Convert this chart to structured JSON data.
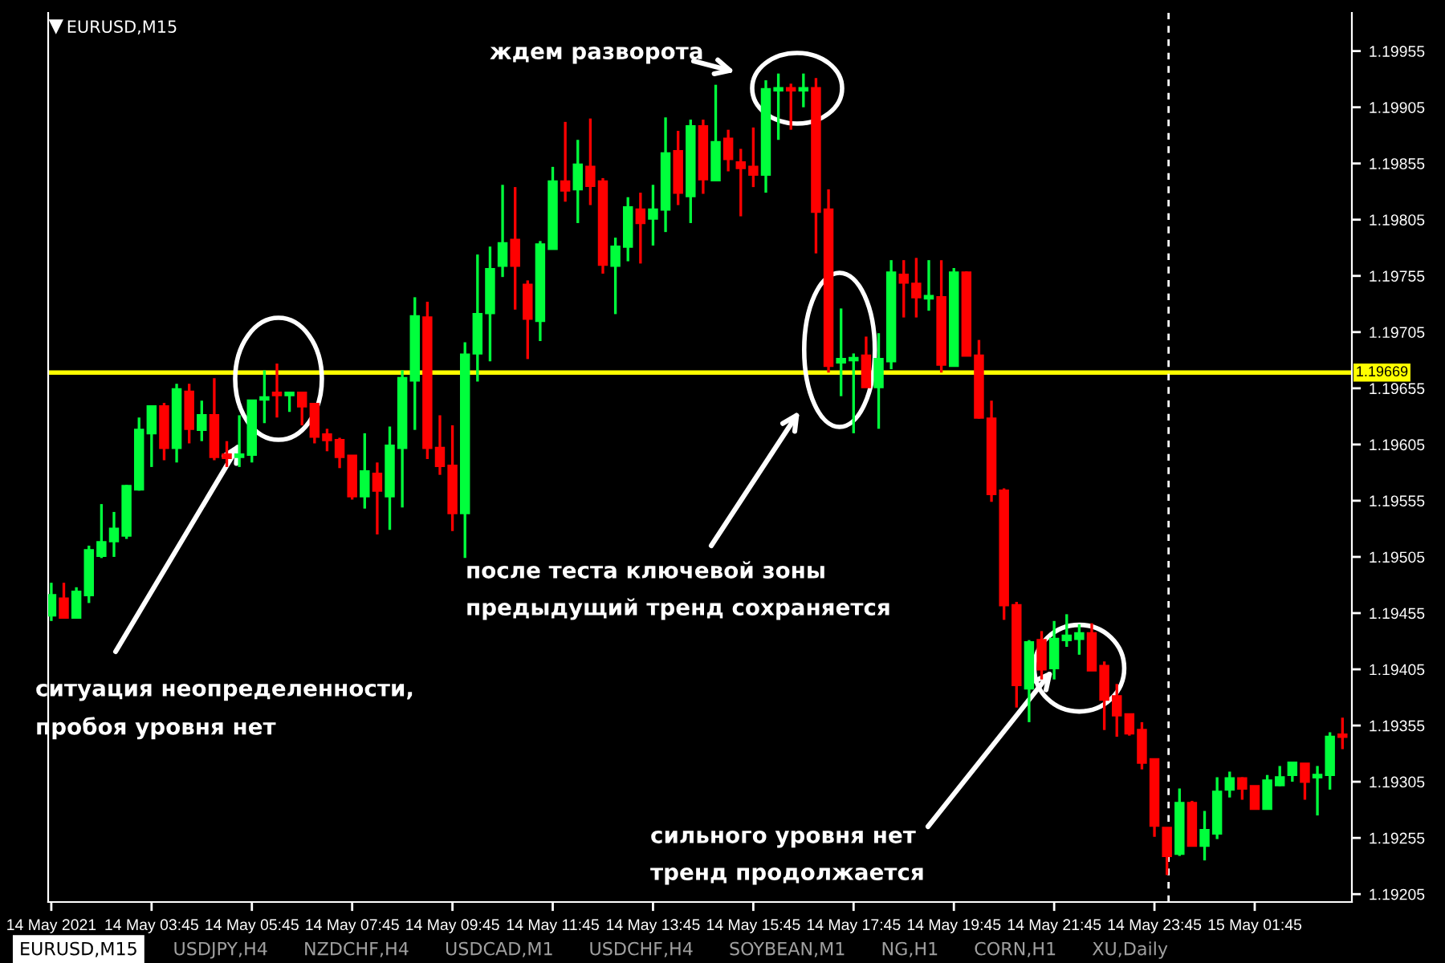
{
  "chart_data": {
    "type": "candlestick",
    "title": "EURUSD,M15",
    "categories": [
      "14 May 2021",
      null,
      null,
      null,
      null,
      null,
      null,
      null,
      "14 May 03:45",
      null,
      null,
      null,
      null,
      null,
      null,
      null,
      "14 May 05:45",
      null,
      null,
      null,
      null,
      null,
      null,
      null,
      "14 May 07:45",
      null,
      null,
      null,
      null,
      null,
      null,
      null,
      "14 May 09:45",
      null,
      null,
      null,
      null,
      null,
      null,
      null,
      "14 May 11:45",
      null,
      null,
      null,
      null,
      null,
      null,
      null,
      "14 May 13:45",
      null,
      null,
      null,
      null,
      null,
      null,
      null,
      "14 May 15:45",
      null,
      null,
      null,
      null,
      null,
      null,
      null,
      "14 May 17:45",
      null,
      null,
      null,
      null,
      null,
      null,
      null,
      "14 May 19:45",
      null,
      null,
      null,
      null,
      null,
      null,
      null,
      "14 May 21:45",
      null,
      null,
      null,
      null,
      null,
      null,
      null,
      "14 May 23:45",
      null,
      null,
      null,
      null,
      null,
      null,
      null,
      "15 May 01:45",
      null,
      null,
      null,
      null,
      null,
      null,
      null
    ],
    "ohlc": [
      [
        1.19453,
        1.19482,
        1.19448,
        1.19471
      ],
      [
        1.19468,
        1.19482,
        1.19451,
        1.19451
      ],
      [
        1.19451,
        1.19478,
        1.19451,
        1.19474
      ],
      [
        1.19471,
        1.19515,
        1.19464,
        1.19511
      ],
      [
        1.19506,
        1.19552,
        1.19504,
        1.19518
      ],
      [
        1.19519,
        1.19545,
        1.19505,
        1.1953
      ],
      [
        1.19524,
        1.19569,
        1.19521,
        1.19568
      ],
      [
        1.19565,
        1.19629,
        1.19564,
        1.19618
      ],
      [
        1.19615,
        1.19639,
        1.19585,
        1.19639
      ],
      [
        1.19639,
        1.19642,
        1.19591,
        1.19602
      ],
      [
        1.19602,
        1.19659,
        1.19589,
        1.19654
      ],
      [
        1.19652,
        1.19659,
        1.19606,
        1.19619
      ],
      [
        1.19618,
        1.19644,
        1.19608,
        1.19631
      ],
      [
        1.19631,
        1.19664,
        1.19591,
        1.19594
      ],
      [
        1.19596,
        1.19608,
        1.19585,
        1.19593
      ],
      [
        1.19594,
        1.19631,
        1.19585,
        1.19596
      ],
      [
        1.19596,
        1.19644,
        1.19589,
        1.19644
      ],
      [
        1.19645,
        1.19671,
        1.19624,
        1.19647
      ],
      [
        1.19651,
        1.19677,
        1.19629,
        1.19649
      ],
      [
        1.19649,
        1.19651,
        1.19634,
        1.19651
      ],
      [
        1.19651,
        1.19651,
        1.19622,
        1.19639
      ],
      [
        1.19641,
        1.19641,
        1.19606,
        1.19612
      ],
      [
        1.19614,
        1.19619,
        1.19599,
        1.19609
      ],
      [
        1.19609,
        1.19611,
        1.19584,
        1.19594
      ],
      [
        1.19595,
        1.19595,
        1.19556,
        1.19559
      ],
      [
        1.19559,
        1.19615,
        1.19548,
        1.19581
      ],
      [
        1.19579,
        1.19589,
        1.19525,
        1.19564
      ],
      [
        1.19559,
        1.19621,
        1.19529,
        1.19604
      ],
      [
        1.19602,
        1.19671,
        1.19549,
        1.19664
      ],
      [
        1.19662,
        1.19736,
        1.19618,
        1.19719
      ],
      [
        1.19718,
        1.19732,
        1.19592,
        1.19602
      ],
      [
        1.19602,
        1.19631,
        1.19578,
        1.19586
      ],
      [
        1.19586,
        1.19622,
        1.19528,
        1.19544
      ],
      [
        1.19544,
        1.19696,
        1.19504,
        1.19685
      ],
      [
        1.19686,
        1.19774,
        1.19661,
        1.19721
      ],
      [
        1.19722,
        1.19781,
        1.19679,
        1.19761
      ],
      [
        1.19764,
        1.19836,
        1.19754,
        1.19784
      ],
      [
        1.19787,
        1.19834,
        1.19725,
        1.19764
      ],
      [
        1.19747,
        1.19751,
        1.19681,
        1.19717
      ],
      [
        1.19715,
        1.19786,
        1.19697,
        1.19783
      ],
      [
        1.19779,
        1.19852,
        1.19779,
        1.19839
      ],
      [
        1.19839,
        1.19892,
        1.19821,
        1.19831
      ],
      [
        1.19832,
        1.19876,
        1.19802,
        1.19854
      ],
      [
        1.19852,
        1.19895,
        1.19818,
        1.19835
      ],
      [
        1.19839,
        1.19842,
        1.19757,
        1.19765
      ],
      [
        1.19764,
        1.19789,
        1.19721,
        1.19781
      ],
      [
        1.19781,
        1.19825,
        1.19768,
        1.19816
      ],
      [
        1.19814,
        1.19829,
        1.19766,
        1.19802
      ],
      [
        1.19806,
        1.19836,
        1.19782,
        1.19814
      ],
      [
        1.19814,
        1.19896,
        1.19794,
        1.19864
      ],
      [
        1.19866,
        1.19884,
        1.19818,
        1.19829
      ],
      [
        1.19826,
        1.19894,
        1.19802,
        1.19888
      ],
      [
        1.19888,
        1.19894,
        1.19828,
        1.19841
      ],
      [
        1.1984,
        1.19925,
        1.1984,
        1.19874
      ],
      [
        1.19877,
        1.19885,
        1.19848,
        1.19859
      ],
      [
        1.19856,
        1.19868,
        1.19808,
        1.19851
      ],
      [
        1.19852,
        1.19887,
        1.19834,
        1.19845
      ],
      [
        1.19845,
        1.19929,
        1.19829,
        1.19921
      ],
      [
        1.1992,
        1.19935,
        1.19876,
        1.19922
      ],
      [
        1.19922,
        1.19926,
        1.19885,
        1.1992
      ],
      [
        1.1992,
        1.19935,
        1.19905,
        1.19922
      ],
      [
        1.19922,
        1.19931,
        1.19775,
        1.19812
      ],
      [
        1.19814,
        1.19832,
        1.19669,
        1.19675
      ],
      [
        1.19678,
        1.19726,
        1.19648,
        1.19681
      ],
      [
        1.1968,
        1.19686,
        1.19615,
        1.19682
      ],
      [
        1.19684,
        1.19701,
        1.19656,
        1.19656
      ],
      [
        1.19656,
        1.19704,
        1.19619,
        1.19681
      ],
      [
        1.19679,
        1.19769,
        1.19672,
        1.19758
      ],
      [
        1.19756,
        1.19769,
        1.19718,
        1.19749
      ],
      [
        1.19748,
        1.19771,
        1.19718,
        1.19736
      ],
      [
        1.19735,
        1.19769,
        1.19724,
        1.19737
      ],
      [
        1.19736,
        1.19769,
        1.19669,
        1.19676
      ],
      [
        1.19675,
        1.19762,
        1.19675,
        1.19758
      ],
      [
        1.19758,
        1.19759,
        1.19684,
        1.19684
      ],
      [
        1.19684,
        1.19698,
        1.19628,
        1.19629
      ],
      [
        1.19628,
        1.19644,
        1.19554,
        1.19561
      ],
      [
        1.19564,
        1.19566,
        1.19449,
        1.19462
      ],
      [
        1.19462,
        1.19465,
        1.19371,
        1.19391
      ],
      [
        1.19388,
        1.19431,
        1.19358,
        1.19429
      ],
      [
        1.19431,
        1.19439,
        1.19396,
        1.19405
      ],
      [
        1.19406,
        1.19448,
        1.19396,
        1.19432
      ],
      [
        1.19431,
        1.19454,
        1.19425,
        1.19435
      ],
      [
        1.19432,
        1.19445,
        1.19418,
        1.19437
      ],
      [
        1.19437,
        1.19446,
        1.19404,
        1.19404
      ],
      [
        1.19408,
        1.19412,
        1.19351,
        1.19378
      ],
      [
        1.19381,
        1.19392,
        1.19345,
        1.19364
      ],
      [
        1.19365,
        1.19365,
        1.19346,
        1.19348
      ],
      [
        1.19351,
        1.19358,
        1.19316,
        1.19322
      ],
      [
        1.19325,
        1.19325,
        1.19256,
        1.19266
      ],
      [
        1.19264,
        1.19264,
        1.19222,
        1.19239
      ],
      [
        1.19241,
        1.19299,
        1.19239,
        1.19286
      ],
      [
        1.19286,
        1.19288,
        1.19248,
        1.19248
      ],
      [
        1.19248,
        1.19279,
        1.19235,
        1.19262
      ],
      [
        1.19259,
        1.19309,
        1.19254,
        1.19296
      ],
      [
        1.19298,
        1.19314,
        1.19291,
        1.19308
      ],
      [
        1.19308,
        1.19309,
        1.19289,
        1.19299
      ],
      [
        1.19301,
        1.19301,
        1.19281,
        1.19281
      ],
      [
        1.19281,
        1.19311,
        1.19281,
        1.19306
      ],
      [
        1.19302,
        1.19319,
        1.19301,
        1.19309
      ],
      [
        1.19311,
        1.19322,
        1.19305,
        1.19322
      ],
      [
        1.19321,
        1.19321,
        1.19289,
        1.19305
      ],
      [
        1.19309,
        1.19319,
        1.19275,
        1.19311
      ],
      [
        1.19311,
        1.19349,
        1.19298,
        1.19345
      ],
      [
        1.19347,
        1.19362,
        1.19334,
        1.19345
      ]
    ],
    "colors": [
      "#00ff3c",
      "#ff0000",
      "#00ff3c",
      "#00ff3c",
      "#00ff3c",
      "#00ff3c",
      "#00ff3c",
      "#00ff3c",
      "#00ff3c",
      "#ff0000",
      "#00ff3c",
      "#ff0000",
      "#00ff3c",
      "#ff0000",
      "#ff0000",
      "#00ff3c",
      "#00ff3c",
      "#00ff3c",
      "#ff0000",
      "#00ff3c",
      "#ff0000",
      "#ff0000",
      "#ff0000",
      "#ff0000",
      "#ff0000",
      "#00ff3c",
      "#ff0000",
      "#00ff3c",
      "#00ff3c",
      "#00ff3c",
      "#ff0000",
      "#ff0000",
      "#ff0000",
      "#00ff3c",
      "#00ff3c",
      "#00ff3c",
      "#00ff3c",
      "#ff0000",
      "#ff0000",
      "#00ff3c",
      "#00ff3c",
      "#ff0000",
      "#00ff3c",
      "#ff0000",
      "#ff0000",
      "#00ff3c",
      "#00ff3c",
      "#ff0000",
      "#00ff3c",
      "#00ff3c",
      "#ff0000",
      "#00ff3c",
      "#ff0000",
      "#00ff3c",
      "#ff0000",
      "#ff0000",
      "#ff0000",
      "#00ff3c",
      "#00ff3c",
      "#ff0000",
      "#00ff3c",
      "#ff0000",
      "#ff0000",
      "#00ff3c",
      "#00ff3c",
      "#ff0000",
      "#00ff3c",
      "#00ff3c",
      "#ff0000",
      "#ff0000",
      "#00ff3c",
      "#ff0000",
      "#00ff3c",
      "#ff0000",
      "#ff0000",
      "#ff0000",
      "#ff0000",
      "#ff0000",
      "#00ff3c",
      "#ff0000",
      "#00ff3c",
      "#00ff3c",
      "#00ff3c",
      "#ff0000",
      "#ff0000",
      "#ff0000",
      "#ff0000",
      "#ff0000",
      "#ff0000",
      "#ff0000",
      "#00ff3c",
      "#ff0000",
      "#00ff3c",
      "#00ff3c",
      "#00ff3c",
      "#ff0000",
      "#ff0000",
      "#00ff3c",
      "#00ff3c",
      "#00ff3c",
      "#ff0000",
      "#00ff3c",
      "#00ff3c",
      "#ff0000"
    ],
    "ylim": [
      1.19198,
      1.19989
    ],
    "yticks": [
      1.19205,
      1.19255,
      1.19305,
      1.19355,
      1.19405,
      1.19455,
      1.19505,
      1.19555,
      1.19605,
      1.19655,
      1.19705,
      1.19755,
      1.19805,
      1.19855,
      1.19905,
      1.19955
    ],
    "ref_lines": [
      {
        "axis": "y",
        "value": 1.19669,
        "label": "1.19669",
        "color": "#ffff00",
        "line_style": "solid"
      }
    ],
    "annotations": [
      "ситуация неопределенности,\nпробоя уровня нет",
      "ждем разворота",
      "после теста ключевой зоны\nпредыдущий тренд сохраняется",
      {
        "text": "сильного уровня нет\nтренд продолжается",
        "x": "14 May 21:45",
        "y": 1.19406
      },
      "EURUSD,M15",
      "USDJPY,H4",
      "NZDCHF,H4",
      "USDCAD,M1",
      "USDCHF,H4",
      "SOYBEAN,M1",
      "NG,H1",
      "CORN,H1",
      "XU,Daily"
    ],
    "grid": false
  }
}
